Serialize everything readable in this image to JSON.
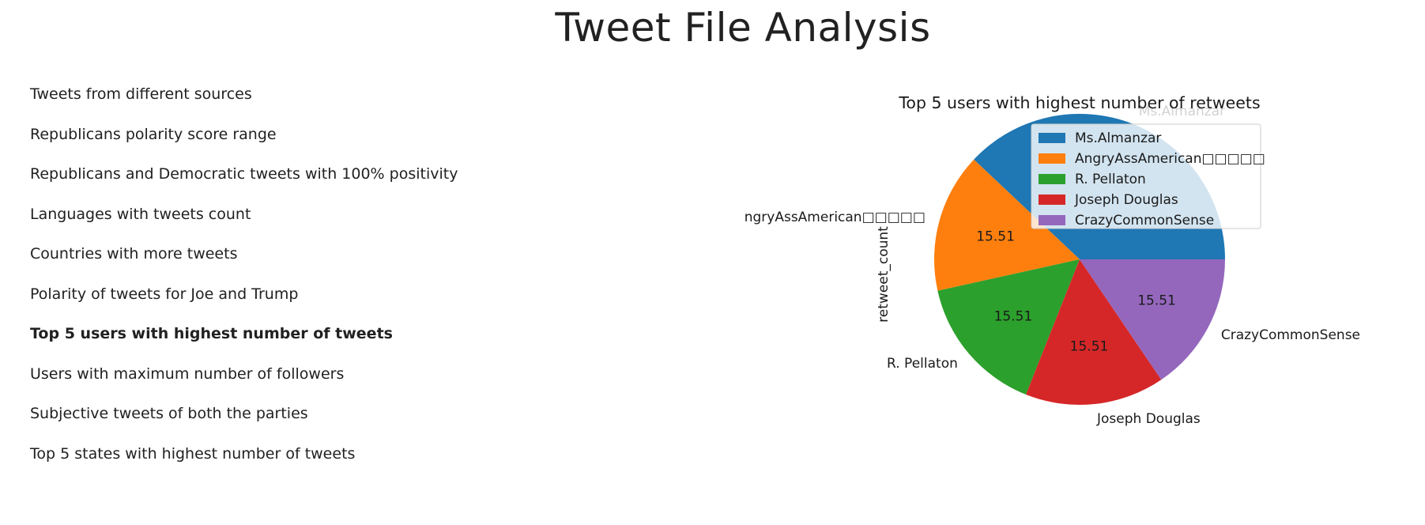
{
  "page": {
    "title": "Tweet File Analysis"
  },
  "nav": {
    "items": [
      {
        "label": "Tweets from different sources",
        "active": false
      },
      {
        "label": "Republicans polarity score range",
        "active": false
      },
      {
        "label": "Republicans and Democratic tweets with 100% positivity",
        "active": false
      },
      {
        "label": "Languages with tweets count",
        "active": false
      },
      {
        "label": "Countries with more tweets",
        "active": false
      },
      {
        "label": "Polarity of tweets for Joe and Trump",
        "active": false
      },
      {
        "label": "Top 5 users with highest number of tweets",
        "active": true
      },
      {
        "label": "Users with maximum number of followers",
        "active": false
      },
      {
        "label": "Subjective tweets of both the parties",
        "active": false
      },
      {
        "label": "Top 5 states with highest number of tweets",
        "active": false
      }
    ]
  },
  "chart_data": {
    "type": "pie",
    "title": "Top 5 users with highest number of retweets",
    "ylabel": "retweet_count",
    "labels": [
      "Ms.Almanzar",
      "AngryAssAmerican□□□□□",
      "R. Pellaton",
      "Joseph Douglas",
      "CrazyCommonSense"
    ],
    "outer_labels": [
      "Ms.Almanzar",
      "ngryAssAmerican□□□□□",
      "R. Pellaton",
      "Joseph Douglas",
      "CrazyCommonSense"
    ],
    "values": [
      37.96,
      15.51,
      15.51,
      15.51,
      15.51
    ],
    "value_labels": [
      "",
      "15.51",
      "15.51",
      "15.51",
      "15.51"
    ],
    "colors": [
      "#1f77b4",
      "#ff7f0e",
      "#2ca02c",
      "#d62728",
      "#9467bd"
    ],
    "legend_position": "top-right"
  }
}
